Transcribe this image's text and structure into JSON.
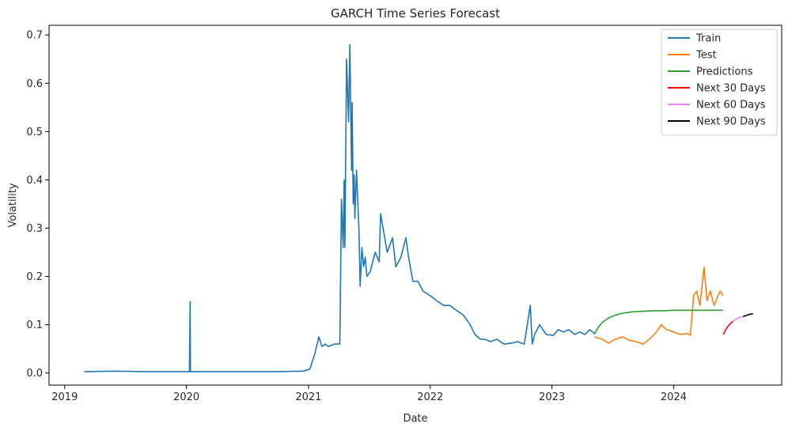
{
  "chart_data": {
    "type": "line",
    "title": "GARCH Time Series Forecast",
    "xlabel": "Date",
    "ylabel": "Volatility",
    "xlim": [
      "2018-11-15",
      "2024-11-20"
    ],
    "ylim": [
      -0.025,
      0.72
    ],
    "x_ticks": [
      "2019",
      "2020",
      "2021",
      "2022",
      "2023",
      "2024"
    ],
    "y_ticks": [
      "0.0",
      "0.1",
      "0.2",
      "0.3",
      "0.4",
      "0.5",
      "0.6",
      "0.7"
    ],
    "grid": false,
    "legend_position": "top-right",
    "series": [
      {
        "name": "Train",
        "color": "#1f77b4",
        "x": [
          "2019-03-01",
          "2019-06-01",
          "2019-09-01",
          "2019-12-01",
          "2020-01-10",
          "2020-01-12",
          "2020-01-13",
          "2020-01-15",
          "2020-04-01",
          "2020-07-01",
          "2020-10-01",
          "2020-12-15",
          "2021-01-05",
          "2021-01-20",
          "2021-02-01",
          "2021-02-10",
          "2021-02-20",
          "2021-03-01",
          "2021-03-20",
          "2021-04-05",
          "2021-04-10",
          "2021-04-15",
          "2021-04-18",
          "2021-04-20",
          "2021-04-25",
          "2021-05-01",
          "2021-05-05",
          "2021-05-10",
          "2021-05-12",
          "2021-05-15",
          "2021-05-18",
          "2021-05-20",
          "2021-05-25",
          "2021-06-01",
          "2021-06-05",
          "2021-06-10",
          "2021-06-15",
          "2021-06-20",
          "2021-06-25",
          "2021-07-05",
          "2021-07-20",
          "2021-08-01",
          "2021-08-05",
          "2021-08-15",
          "2021-08-25",
          "2021-09-10",
          "2021-09-20",
          "2021-10-05",
          "2021-10-20",
          "2021-10-28",
          "2021-11-10",
          "2021-11-25",
          "2021-12-10",
          "2022-01-01",
          "2022-01-20",
          "2022-02-10",
          "2022-03-01",
          "2022-03-20",
          "2022-04-10",
          "2022-05-01",
          "2022-05-15",
          "2022-06-01",
          "2022-06-15",
          "2022-07-01",
          "2022-07-20",
          "2022-08-10",
          "2022-09-01",
          "2022-09-20",
          "2022-10-10",
          "2022-10-28",
          "2022-11-03",
          "2022-11-10",
          "2022-11-25",
          "2022-12-15",
          "2023-01-05",
          "2023-01-20",
          "2023-02-05",
          "2023-02-20",
          "2023-03-10",
          "2023-03-25",
          "2023-04-10",
          "2023-04-25",
          "2023-05-08"
        ],
        "y": [
          0.003,
          0.004,
          0.003,
          0.003,
          0.003,
          0.148,
          0.003,
          0.003,
          0.003,
          0.003,
          0.003,
          0.004,
          0.008,
          0.04,
          0.075,
          0.055,
          0.06,
          0.055,
          0.06,
          0.06,
          0.36,
          0.26,
          0.4,
          0.26,
          0.65,
          0.52,
          0.68,
          0.42,
          0.56,
          0.35,
          0.41,
          0.32,
          0.42,
          0.3,
          0.18,
          0.26,
          0.22,
          0.24,
          0.2,
          0.21,
          0.25,
          0.23,
          0.33,
          0.29,
          0.25,
          0.28,
          0.22,
          0.24,
          0.28,
          0.24,
          0.19,
          0.19,
          0.17,
          0.16,
          0.15,
          0.14,
          0.14,
          0.13,
          0.12,
          0.1,
          0.08,
          0.07,
          0.07,
          0.065,
          0.07,
          0.06,
          0.062,
          0.065,
          0.06,
          0.14,
          0.06,
          0.08,
          0.1,
          0.08,
          0.078,
          0.09,
          0.085,
          0.09,
          0.08,
          0.085,
          0.08,
          0.09,
          0.082
        ]
      },
      {
        "name": "Test",
        "color": "#ff7f0e",
        "x": [
          "2023-05-08",
          "2023-06-01",
          "2023-06-20",
          "2023-07-10",
          "2023-08-01",
          "2023-08-20",
          "2023-09-10",
          "2023-10-01",
          "2023-10-20",
          "2023-11-10",
          "2023-11-25",
          "2023-12-10",
          "2024-01-01",
          "2024-01-20",
          "2024-02-10",
          "2024-02-20",
          "2024-03-01",
          "2024-03-10",
          "2024-03-20",
          "2024-04-01",
          "2024-04-10",
          "2024-04-20",
          "2024-05-01",
          "2024-05-10",
          "2024-05-20",
          "2024-05-28"
        ],
        "y": [
          0.075,
          0.07,
          0.062,
          0.07,
          0.075,
          0.068,
          0.065,
          0.06,
          0.07,
          0.085,
          0.1,
          0.09,
          0.085,
          0.08,
          0.082,
          0.078,
          0.16,
          0.17,
          0.14,
          0.22,
          0.15,
          0.17,
          0.14,
          0.155,
          0.17,
          0.16
        ]
      },
      {
        "name": "Predictions",
        "color": "#2ca02c",
        "x": [
          "2023-05-08",
          "2023-05-20",
          "2023-06-01",
          "2023-06-20",
          "2023-07-10",
          "2023-08-01",
          "2023-09-01",
          "2023-10-01",
          "2023-11-01",
          "2023-12-01",
          "2024-01-01",
          "2024-03-01",
          "2024-05-28"
        ],
        "y": [
          0.08,
          0.095,
          0.105,
          0.114,
          0.12,
          0.124,
          0.127,
          0.128,
          0.129,
          0.129,
          0.13,
          0.13,
          0.13
        ]
      },
      {
        "name": "Next 30 Days",
        "color": "#ff0000",
        "x": [
          "2024-05-29",
          "2024-06-05",
          "2024-06-12",
          "2024-06-20",
          "2024-06-27"
        ],
        "y": [
          0.08,
          0.09,
          0.097,
          0.103,
          0.107
        ]
      },
      {
        "name": "Next 60 Days",
        "color": "#ee82ee",
        "x": [
          "2024-06-27",
          "2024-07-05",
          "2024-07-12",
          "2024-07-20",
          "2024-07-27"
        ],
        "y": [
          0.107,
          0.111,
          0.114,
          0.116,
          0.117
        ]
      },
      {
        "name": "Next 90 Days",
        "color": "#000000",
        "x": [
          "2024-07-27",
          "2024-08-05",
          "2024-08-12",
          "2024-08-20",
          "2024-08-26"
        ],
        "y": [
          0.117,
          0.119,
          0.121,
          0.122,
          0.123
        ]
      }
    ]
  }
}
